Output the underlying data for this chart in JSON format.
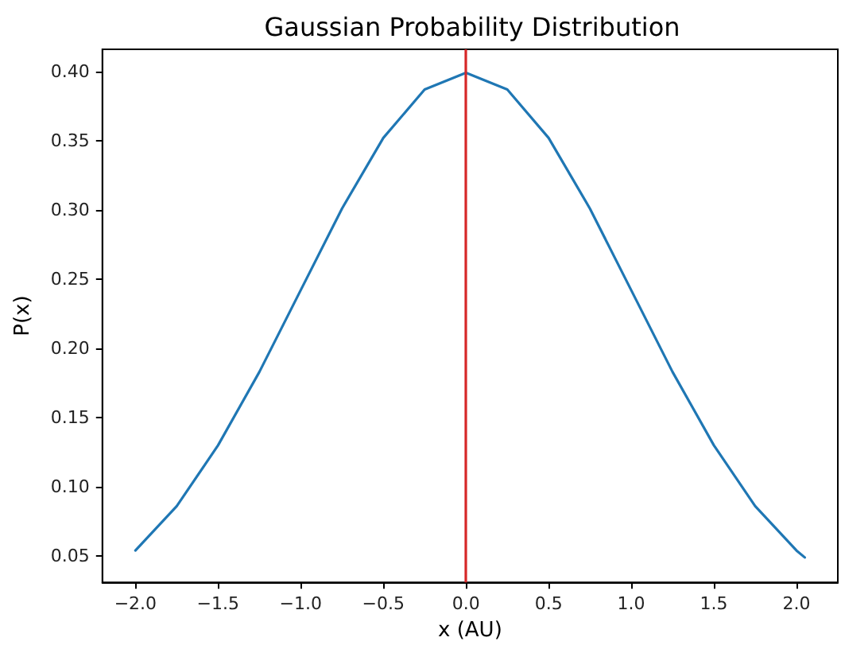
{
  "chart_data": {
    "type": "line",
    "title": "Gaussian Probability Distribution",
    "xlabel": "x (AU)",
    "ylabel": "P(x)",
    "x": [
      -2,
      -1.75,
      -1.5,
      -1.25,
      -1,
      -0.75,
      -0.5,
      -0.25,
      0,
      0.25,
      0.5,
      0.75,
      1,
      1.25,
      1.5,
      1.75,
      2,
      2.05
    ],
    "series": [
      {
        "color": "#1f77b4",
        "values": [
          0.054,
          0.086,
          0.13,
          0.183,
          0.242,
          0.301,
          0.352,
          0.387,
          0.399,
          0.387,
          0.352,
          0.301,
          0.242,
          0.183,
          0.13,
          0.086,
          0.054,
          0.049
        ]
      }
    ],
    "xlim": [
      -2.2,
      2.25
    ],
    "ylim": [
      0.031,
      0.416
    ],
    "xticks": [
      {
        "value": -2,
        "label": "−2.0"
      },
      {
        "value": -1.5,
        "label": "−1.5"
      },
      {
        "value": -1,
        "label": "−1.0"
      },
      {
        "value": -0.5,
        "label": "−0.5"
      },
      {
        "value": 0,
        "label": "0.0"
      },
      {
        "value": 0.5,
        "label": "0.5"
      },
      {
        "value": 1,
        "label": "1.0"
      },
      {
        "value": 1.5,
        "label": "1.5"
      },
      {
        "value": 2,
        "label": "2.0"
      }
    ],
    "yticks": [
      0.05,
      {
        "value": 0.1,
        "label": "0.10"
      },
      {
        "value": 0.15,
        "label": "0.15"
      },
      {
        "value": 0.2,
        "label": "0.20"
      },
      0.25,
      {
        "value": 0.3,
        "label": "0.30"
      },
      0.35,
      {
        "value": 0.4,
        "label": "0.40"
      }
    ],
    "ref_lines": [
      {
        "axis": "x",
        "value": 0,
        "color": "#d62728"
      }
    ],
    "grid": false,
    "marker": "none",
    "line_style": "solid"
  }
}
